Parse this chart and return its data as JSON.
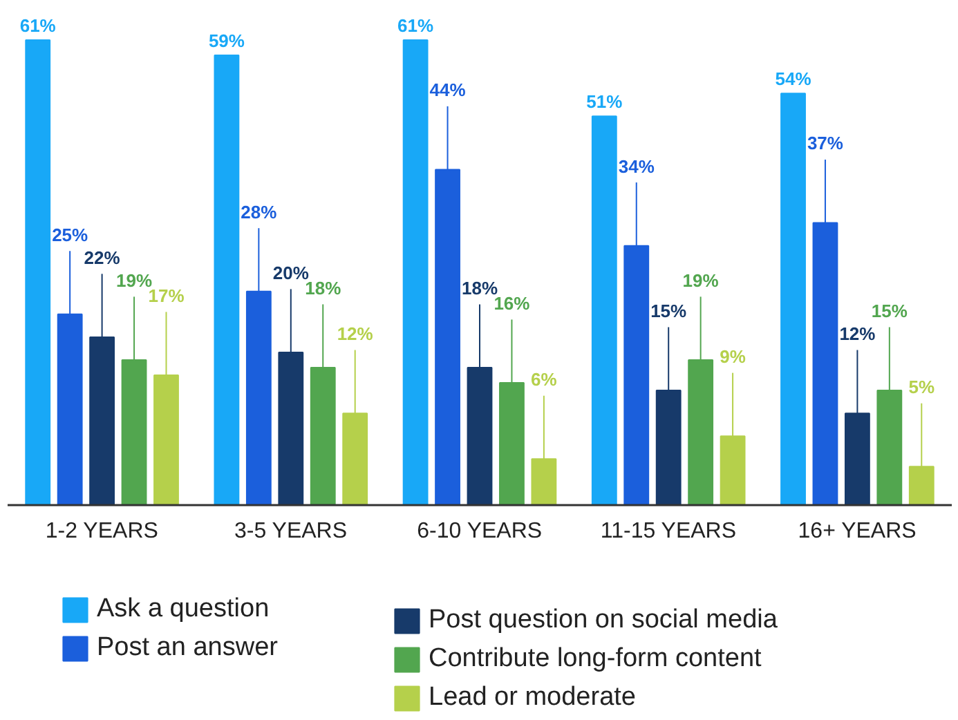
{
  "chart_data": {
    "type": "bar",
    "categories": [
      "1-2 YEARS",
      "3-5 YEARS",
      "6-10 YEARS",
      "11-15 YEARS",
      "16+ YEARS"
    ],
    "series": [
      {
        "name": "Ask a question",
        "color": "#18a8f7",
        "values": [
          61,
          59,
          61,
          51,
          54
        ],
        "value_labels": [
          "61%",
          "59%",
          "61%",
          "51%",
          "54%"
        ]
      },
      {
        "name": "Post an answer",
        "color": "#1b5fdc",
        "values": [
          25,
          28,
          44,
          34,
          37
        ],
        "value_labels": [
          "25%",
          "28%",
          "44%",
          "34%",
          "37%"
        ]
      },
      {
        "name": "Post question on social media",
        "color": "#173a6a",
        "values": [
          22,
          20,
          18,
          15,
          12
        ],
        "value_labels": [
          "22%",
          "20%",
          "18%",
          "15%",
          "12%"
        ]
      },
      {
        "name": "Contribute long-form content",
        "color": "#52a64f",
        "values": [
          19,
          18,
          16,
          19,
          15
        ],
        "value_labels": [
          "19%",
          "18%",
          "16%",
          "19%",
          "15%"
        ]
      },
      {
        "name": "Lead or moderate",
        "color": "#b5d04b",
        "values": [
          17,
          12,
          6,
          9,
          5
        ],
        "value_labels": [
          "17%",
          "12%",
          "6%",
          "9%",
          "5%"
        ]
      }
    ],
    "legend": "bottom"
  }
}
